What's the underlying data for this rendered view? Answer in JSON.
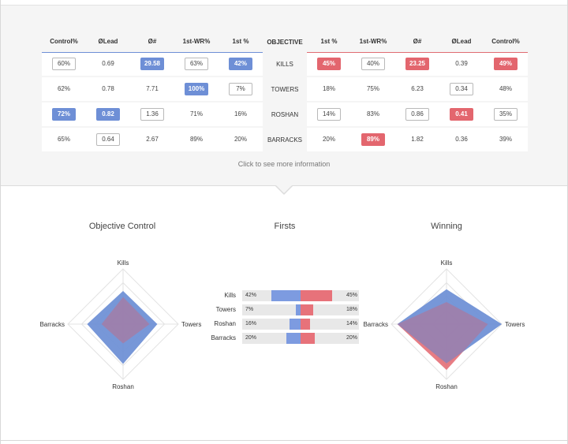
{
  "table": {
    "left_headers": [
      "Control%",
      "ØLead",
      "Ø#",
      "1st-WR%",
      "1st %"
    ],
    "middle_header": "OBJECTIVE",
    "right_headers": [
      "1st %",
      "1st-WR%",
      "Ø#",
      "ØLead",
      "Control%"
    ],
    "rows": [
      {
        "objective": "KILLS",
        "left": [
          {
            "v": "60%",
            "s": "box"
          },
          {
            "v": "0.69",
            "s": "plain"
          },
          {
            "v": "29.58",
            "s": "blue"
          },
          {
            "v": "63%",
            "s": "box"
          },
          {
            "v": "42%",
            "s": "blue"
          }
        ],
        "right": [
          {
            "v": "45%",
            "s": "red"
          },
          {
            "v": "40%",
            "s": "box"
          },
          {
            "v": "23.25",
            "s": "red"
          },
          {
            "v": "0.39",
            "s": "plain"
          },
          {
            "v": "49%",
            "s": "red"
          }
        ]
      },
      {
        "objective": "TOWERS",
        "left": [
          {
            "v": "62%",
            "s": "plain"
          },
          {
            "v": "0.78",
            "s": "plain"
          },
          {
            "v": "7.71",
            "s": "plain"
          },
          {
            "v": "100%",
            "s": "blue"
          },
          {
            "v": "7%",
            "s": "box"
          }
        ],
        "right": [
          {
            "v": "18%",
            "s": "plain"
          },
          {
            "v": "75%",
            "s": "plain"
          },
          {
            "v": "6.23",
            "s": "plain"
          },
          {
            "v": "0.34",
            "s": "box"
          },
          {
            "v": "48%",
            "s": "plain"
          }
        ]
      },
      {
        "objective": "ROSHAN",
        "left": [
          {
            "v": "72%",
            "s": "blue"
          },
          {
            "v": "0.82",
            "s": "blue"
          },
          {
            "v": "1.36",
            "s": "box"
          },
          {
            "v": "71%",
            "s": "plain"
          },
          {
            "v": "16%",
            "s": "plain"
          }
        ],
        "right": [
          {
            "v": "14%",
            "s": "box"
          },
          {
            "v": "83%",
            "s": "plain"
          },
          {
            "v": "0.86",
            "s": "box"
          },
          {
            "v": "0.41",
            "s": "red"
          },
          {
            "v": "35%",
            "s": "box"
          }
        ]
      },
      {
        "objective": "BARRACKS",
        "left": [
          {
            "v": "65%",
            "s": "plain"
          },
          {
            "v": "0.64",
            "s": "box"
          },
          {
            "v": "2.67",
            "s": "plain"
          },
          {
            "v": "89%",
            "s": "plain"
          },
          {
            "v": "20%",
            "s": "plain"
          }
        ],
        "right": [
          {
            "v": "20%",
            "s": "plain"
          },
          {
            "v": "89%",
            "s": "red"
          },
          {
            "v": "1.82",
            "s": "plain"
          },
          {
            "v": "0.36",
            "s": "plain"
          },
          {
            "v": "39%",
            "s": "plain"
          }
        ]
      }
    ]
  },
  "more_info": "Click to see more information",
  "sections": {
    "control_title": "Objective Control",
    "firsts_title": "Firsts",
    "winning_title": "Winning"
  },
  "radar_labels": {
    "top": "Kills",
    "right": "Towers",
    "bottom": "Roshan",
    "left": "Barracks"
  },
  "control_radar": {
    "blue": {
      "Kills": 0.6,
      "Towers": 0.62,
      "Roshan": 0.72,
      "Barracks": 0.65
    },
    "red": {
      "Kills": 0.49,
      "Towers": 0.48,
      "Roshan": 0.35,
      "Barracks": 0.39
    }
  },
  "winning_radar": {
    "blue": {
      "Kills": 0.63,
      "Towers": 1.0,
      "Roshan": 0.71,
      "Barracks": 0.89
    },
    "red": {
      "Kills": 0.4,
      "Towers": 0.75,
      "Roshan": 0.83,
      "Barracks": 0.89
    }
  },
  "firsts": [
    {
      "label": "Kills",
      "left": "42%",
      "right": "45%",
      "blue": 0.42,
      "red": 0.45
    },
    {
      "label": "Towers",
      "left": "7%",
      "right": "18%",
      "blue": 0.07,
      "red": 0.18
    },
    {
      "label": "Roshan",
      "left": "16%",
      "right": "14%",
      "blue": 0.16,
      "red": 0.14
    },
    {
      "label": "Barracks",
      "left": "20%",
      "right": "20%",
      "blue": 0.2,
      "red": 0.2
    }
  ],
  "colors": {
    "blue": "#6e8fd6",
    "red": "#e3666e",
    "overlap": "#8b6fb0"
  }
}
